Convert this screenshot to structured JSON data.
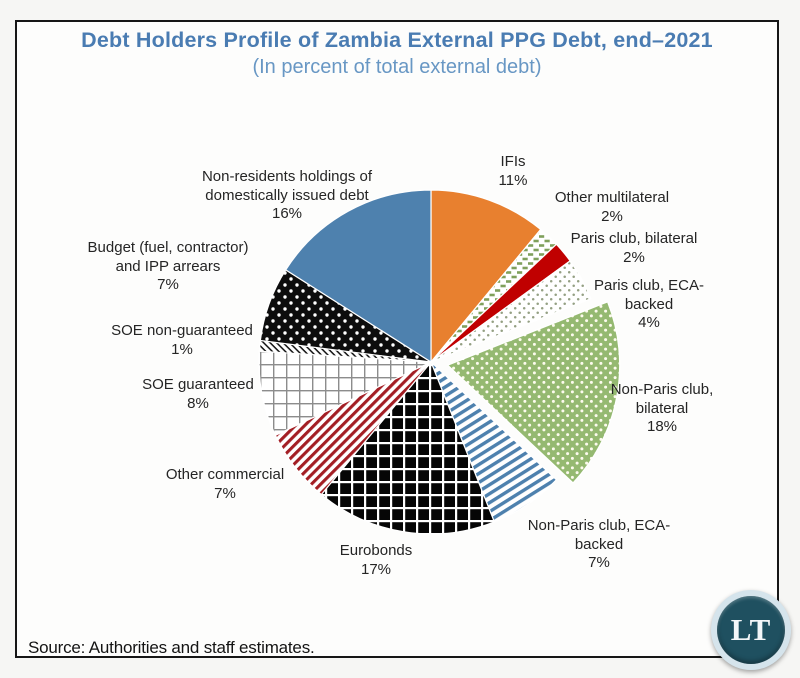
{
  "header": {
    "title_color": "#4a7cb2",
    "subtitle_color": "#6897c4"
  },
  "footer": {
    "source": "Source: Authorities and staff estimates."
  },
  "logo": {
    "text": "LT",
    "circle_color": "#1f5060",
    "ring_color": "#d5e4ec",
    "text_color": "#f3f6f8"
  },
  "chart_data": {
    "type": "pie",
    "title": "Debt Holders Profile of Zambia External PPG Debt, end–2021",
    "subtitle": "(In percent of total external debt)",
    "start_angle_deg": 0,
    "direction": "clockwise",
    "unit": "%",
    "slices": [
      {
        "label": "IFIs",
        "value": 11,
        "pattern": "solid",
        "fg": "#e8802f",
        "bg": "#e8802f",
        "exploded": false
      },
      {
        "label": "Other multilateral",
        "value": 2,
        "pattern": "dash-grid",
        "fg": "#7fa05b",
        "bg": "#ffffff",
        "exploded": false
      },
      {
        "label": "Paris club, bilateral",
        "value": 2,
        "pattern": "solid",
        "fg": "#c00000",
        "bg": "#c00000",
        "exploded": false
      },
      {
        "label": "Paris club, ECA-backed",
        "value": 4,
        "pattern": "dots-sparse",
        "fg": "#94a083",
        "bg": "#ffffff",
        "exploded": false
      },
      {
        "label": "Non-Paris club, bilateral",
        "value": 18,
        "pattern": "dots",
        "fg": "#fdfbee",
        "bg": "#95b971",
        "exploded": true
      },
      {
        "label": "Non-Paris club, ECA-backed",
        "value": 7,
        "pattern": "stripes30",
        "fg": "#4e81ae",
        "bg": "#ffffff",
        "exploded": false
      },
      {
        "label": "Eurobonds",
        "value": 17,
        "pattern": "grid-bold",
        "fg": "#ffffff",
        "bg": "#060606",
        "exploded": false
      },
      {
        "label": "Other commercial",
        "value": 7,
        "pattern": "stripes45",
        "fg": "#a31e24",
        "bg": "#ffffff",
        "exploded": false
      },
      {
        "label": "SOE guaranteed",
        "value": 8,
        "pattern": "grid-thin",
        "fg": "#8c8c8c",
        "bg": "#ffffff",
        "exploded": false
      },
      {
        "label": "SOE non-guaranteed",
        "value": 1,
        "pattern": "hatch-fine",
        "fg": "#111111",
        "bg": "#ffffff",
        "exploded": false
      },
      {
        "label": "Budget (fuel, contractor) and IPP arrears",
        "value": 7,
        "pattern": "dots-wide",
        "fg": "#ffffff",
        "bg": "#0d0d0d",
        "exploded": false
      },
      {
        "label": "Non-residents holdings of domestically issued debt",
        "value": 16,
        "pattern": "solid",
        "fg": "#4e81ae",
        "bg": "#4e81ae",
        "exploded": false
      }
    ]
  }
}
